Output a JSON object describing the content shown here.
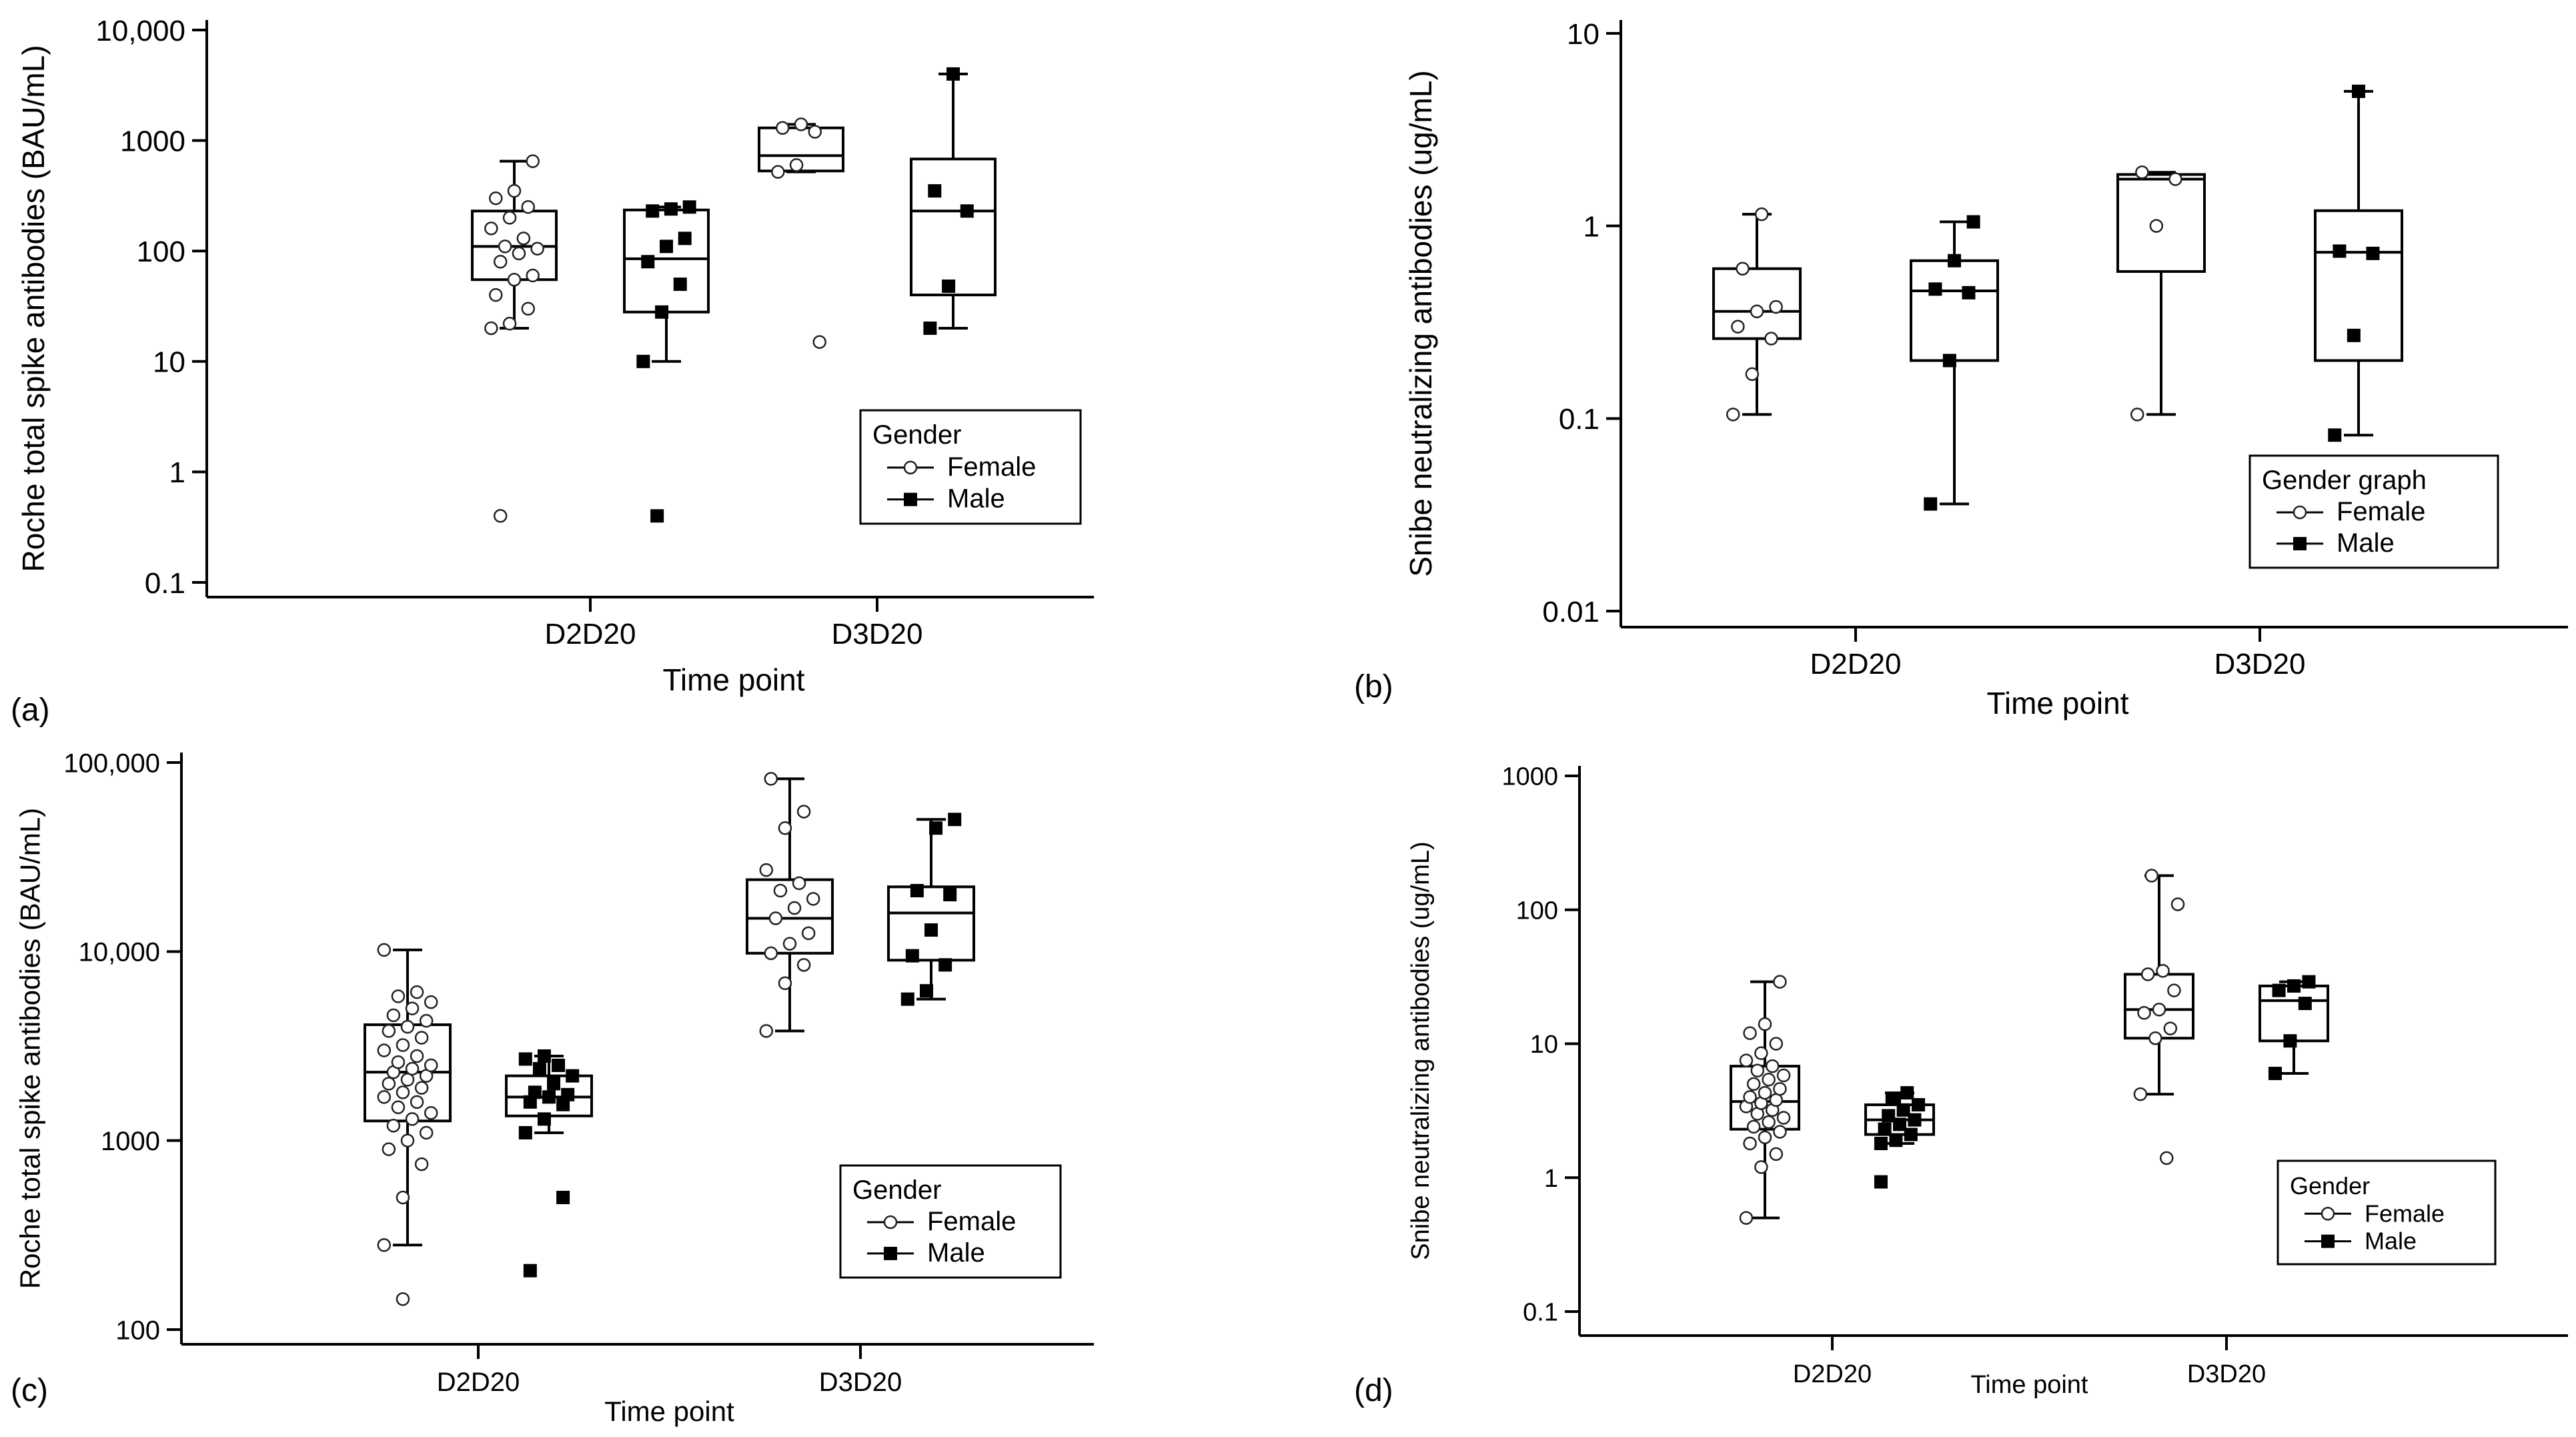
{
  "chart_data": [
    {
      "id": "a",
      "panel_label": "(a)",
      "type": "box",
      "scale": "log",
      "ylim": [
        0.1,
        10000
      ],
      "yticks": [
        0.1,
        1,
        10,
        100,
        1000,
        10000
      ],
      "ytick_labels": [
        "0.1",
        "1",
        "10",
        "100",
        "1000",
        "10,000"
      ],
      "ylabel": "Roche total spike antibodies (BAU/mL)",
      "xlabel": "Time point",
      "categories": [
        "D2D20",
        "D3D20"
      ],
      "legend": {
        "title": "Gender",
        "entries": [
          "Female",
          "Male"
        ],
        "position": "right-middle"
      },
      "series": [
        {
          "name": "Female",
          "marker": "circle",
          "boxes": [
            {
              "category": "D2D20",
              "whisker_low": 20,
              "q1": 55,
              "median": 110,
              "q3": 230,
              "whisker_high": 650,
              "points": [
                20,
                22,
                30,
                40,
                55,
                60,
                80,
                95,
                105,
                110,
                130,
                160,
                200,
                250,
                300,
                350,
                650,
                0.4
              ]
            },
            {
              "category": "D3D20",
              "whisker_low": 520,
              "q1": 530,
              "median": 730,
              "q3": 1300,
              "whisker_high": 1400,
              "points": [
                520,
                600,
                1200,
                1300,
                1400,
                15
              ]
            }
          ]
        },
        {
          "name": "Male",
          "marker": "square",
          "boxes": [
            {
              "category": "D2D20",
              "whisker_low": 10,
              "q1": 28,
              "median": 85,
              "q3": 235,
              "whisker_high": 250,
              "points": [
                10,
                28,
                50,
                80,
                110,
                130,
                230,
                240,
                250,
                0.4
              ]
            },
            {
              "category": "D3D20",
              "whisker_low": 20,
              "q1": 40,
              "median": 230,
              "q3": 680,
              "whisker_high": 4000,
              "points": [
                20,
                48,
                230,
                350,
                4000
              ]
            }
          ]
        }
      ]
    },
    {
      "id": "b",
      "panel_label": "(b)",
      "type": "box",
      "scale": "log",
      "ylim": [
        0.01,
        10
      ],
      "yticks": [
        0.01,
        0.1,
        1,
        10
      ],
      "ytick_labels": [
        "0.01",
        "0.1",
        "1",
        "10"
      ],
      "ylabel": "Snibe neutralizing antibodies (ug/mL)",
      "xlabel": "Time point",
      "categories": [
        "D2D20",
        "D3D20"
      ],
      "legend": {
        "title": "Gender graph",
        "entries": [
          "Female",
          "Male"
        ],
        "position": "bottom-right"
      },
      "series": [
        {
          "name": "Female",
          "marker": "circle",
          "boxes": [
            {
              "category": "D2D20",
              "whisker_low": 0.105,
              "q1": 0.26,
              "median": 0.36,
              "q3": 0.6,
              "whisker_high": 1.15,
              "points": [
                0.105,
                0.17,
                0.26,
                0.3,
                0.36,
                0.38,
                0.6,
                1.15
              ]
            },
            {
              "category": "D3D20",
              "whisker_low": 0.105,
              "q1": 0.58,
              "median": 1.75,
              "q3": 1.85,
              "whisker_high": 1.9,
              "points": [
                0.105,
                1.0,
                1.75,
                1.9
              ]
            }
          ]
        },
        {
          "name": "Male",
          "marker": "square",
          "boxes": [
            {
              "category": "D2D20",
              "whisker_low": 0.036,
              "q1": 0.2,
              "median": 0.46,
              "q3": 0.66,
              "whisker_high": 1.05,
              "points": [
                0.036,
                0.2,
                0.45,
                0.47,
                0.66,
                1.05
              ]
            },
            {
              "category": "D3D20",
              "whisker_low": 0.082,
              "q1": 0.2,
              "median": 0.73,
              "q3": 1.2,
              "whisker_high": 5.0,
              "points": [
                0.082,
                0.27,
                0.72,
                0.74,
                5.0
              ]
            }
          ]
        }
      ]
    },
    {
      "id": "c",
      "panel_label": "(c)",
      "type": "box",
      "scale": "log",
      "ylim": [
        100,
        100000
      ],
      "yticks": [
        100,
        1000,
        10000,
        100000
      ],
      "ytick_labels": [
        "100",
        "1000",
        "10,000",
        "100,000"
      ],
      "ylabel": "Roche total spike antibodies (BAU/mL)",
      "xlabel": "Time point",
      "categories": [
        "D2D20",
        "D3D20"
      ],
      "legend": {
        "title": "Gender",
        "entries": [
          "Female",
          "Male"
        ],
        "position": "right-middle"
      },
      "series": [
        {
          "name": "Female",
          "marker": "circle",
          "boxes": [
            {
              "category": "D2D20",
              "whisker_low": 280,
              "q1": 1270,
              "median": 2300,
              "q3": 4100,
              "whisker_high": 10200,
              "points": [
                280,
                500,
                750,
                900,
                1000,
                1100,
                1200,
                1300,
                1400,
                1500,
                1600,
                1700,
                1800,
                1900,
                2000,
                2100,
                2200,
                2300,
                2400,
                2500,
                2600,
                2800,
                3000,
                3200,
                3500,
                3800,
                4000,
                4300,
                4600,
                5000,
                5400,
                5800,
                6100,
                10200,
                145
              ]
            },
            {
              "category": "D3D20",
              "whisker_low": 3800,
              "q1": 9800,
              "median": 15000,
              "q3": 24000,
              "whisker_high": 82000,
              "points": [
                3800,
                6800,
                8500,
                9800,
                11000,
                12500,
                15000,
                17000,
                19000,
                21000,
                23000,
                27000,
                45000,
                55000,
                82000
              ]
            }
          ]
        },
        {
          "name": "Male",
          "marker": "square",
          "boxes": [
            {
              "category": "D2D20",
              "whisker_low": 1100,
              "q1": 1350,
              "median": 1700,
              "q3": 2200,
              "whisker_high": 2800,
              "points": [
                1100,
                1300,
                1550,
                1600,
                1700,
                1750,
                1800,
                2000,
                2200,
                2400,
                2500,
                2700,
                2800,
                500,
                205
              ]
            },
            {
              "category": "D3D20",
              "whisker_low": 5600,
              "q1": 9000,
              "median": 16000,
              "q3": 22000,
              "whisker_high": 50000,
              "points": [
                5600,
                6200,
                8500,
                9500,
                13000,
                20000,
                21000,
                45000,
                50000
              ]
            }
          ]
        }
      ]
    },
    {
      "id": "d",
      "panel_label": "(d)",
      "type": "box",
      "scale": "log",
      "ylim": [
        0.1,
        1000
      ],
      "yticks": [
        0.1,
        1,
        10,
        100,
        1000
      ],
      "ytick_labels": [
        "0.1",
        "1",
        "10",
        "100",
        "1000"
      ],
      "ylabel": "Snibe neutralizing antibodies (ug/mL)",
      "xlabel": "Time point",
      "categories": [
        "D2D20",
        "D3D20"
      ],
      "legend": {
        "title": "Gender",
        "entries": [
          "Female",
          "Male"
        ],
        "position": "bottom-right"
      },
      "series": [
        {
          "name": "Female",
          "marker": "circle",
          "boxes": [
            {
              "category": "D2D20",
              "whisker_low": 0.5,
              "q1": 2.3,
              "median": 3.7,
              "q3": 6.8,
              "whisker_high": 29,
              "points": [
                0.5,
                1.2,
                1.5,
                1.8,
                2.0,
                2.2,
                2.4,
                2.6,
                2.8,
                3.0,
                3.2,
                3.4,
                3.6,
                3.8,
                4.0,
                4.3,
                4.6,
                5.0,
                5.4,
                5.8,
                6.3,
                6.8,
                7.5,
                8.5,
                10,
                12,
                14,
                29
              ]
            },
            {
              "category": "D3D20",
              "whisker_low": 4.2,
              "q1": 11,
              "median": 18,
              "q3": 33,
              "whisker_high": 180,
              "points": [
                4.2,
                11,
                13,
                17,
                18,
                25,
                33,
                35,
                110,
                180,
                1.4
              ]
            }
          ]
        },
        {
          "name": "Male",
          "marker": "square",
          "boxes": [
            {
              "category": "D2D20",
              "whisker_low": 1.8,
              "q1": 2.1,
              "median": 2.7,
              "q3": 3.5,
              "whisker_high": 4.3,
              "points": [
                1.8,
                1.9,
                2.1,
                2.3,
                2.5,
                2.7,
                2.9,
                3.2,
                3.5,
                3.9,
                4.3,
                0.93
              ]
            },
            {
              "category": "D3D20",
              "whisker_low": 6.0,
              "q1": 10.5,
              "median": 21,
              "q3": 27,
              "whisker_high": 29,
              "points": [
                6.0,
                10.5,
                20,
                25,
                27,
                29
              ]
            }
          ]
        }
      ]
    }
  ]
}
